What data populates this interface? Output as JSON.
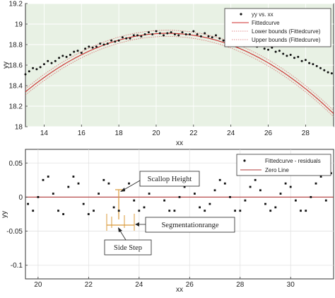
{
  "chart_data": [
    {
      "type": "scatter",
      "xlabel": "xx",
      "ylabel": "yy",
      "xlim": [
        13,
        29.5
      ],
      "ylim": [
        18,
        19.2
      ],
      "xticks": [
        14,
        16,
        18,
        20,
        22,
        24,
        26,
        28
      ],
      "yticks": [
        18,
        18.2,
        18.4,
        18.6,
        18.8,
        19,
        19.2
      ],
      "grid": true,
      "legend_position": "top-right",
      "colors": {
        "plot_bg": "#e8f1e4",
        "points": "#111111",
        "fit": "#cc2a2a",
        "bounds": "#d86a6a"
      },
      "legend": [
        "yy vs. xx",
        "Fittedcurve",
        "Lower bounds (Fittedcurve)",
        "Upper bounds (Fittedcurve)"
      ],
      "fit": {
        "form": "quadratic",
        "a": -0.00988,
        "x0": 20.6,
        "c": 18.91
      },
      "bound_offset": 0.03,
      "series": [
        {
          "name": "yy vs. xx",
          "x": [
            13.0,
            13.2,
            13.4,
            13.6,
            13.8,
            14.0,
            14.2,
            14.4,
            14.6,
            14.8,
            15.0,
            15.2,
            15.4,
            15.6,
            15.8,
            16.0,
            16.2,
            16.4,
            16.6,
            16.8,
            17.0,
            17.2,
            17.4,
            17.6,
            17.8,
            18.0,
            18.2,
            18.4,
            18.6,
            18.8,
            19.0,
            19.2,
            19.4,
            19.6,
            19.8,
            20.0,
            20.2,
            20.4,
            20.6,
            20.8,
            21.0,
            21.2,
            21.4,
            21.6,
            21.8,
            22.0,
            22.2,
            22.4,
            22.6,
            22.8,
            23.0,
            23.2,
            23.4,
            23.6,
            23.8,
            24.0,
            24.2,
            24.4,
            24.6,
            24.8,
            25.0,
            25.2,
            25.4,
            25.6,
            25.8,
            26.0,
            26.2,
            26.4,
            26.6,
            26.8,
            27.0,
            27.2,
            27.4,
            27.6,
            27.8,
            28.0,
            28.2,
            28.4,
            28.6,
            28.8,
            29.0,
            29.2,
            29.4
          ],
          "y": [
            18.51,
            18.54,
            18.57,
            18.56,
            18.58,
            18.61,
            18.64,
            18.62,
            18.64,
            18.67,
            18.69,
            18.68,
            18.7,
            18.73,
            18.74,
            18.72,
            18.76,
            18.78,
            18.77,
            18.78,
            18.81,
            18.8,
            18.81,
            18.84,
            18.83,
            18.84,
            18.87,
            18.86,
            18.86,
            18.89,
            18.89,
            18.88,
            18.9,
            18.92,
            18.9,
            18.93,
            18.91,
            18.89,
            18.91,
            18.92,
            18.9,
            18.89,
            18.92,
            18.9,
            18.9,
            18.93,
            18.9,
            18.88,
            18.91,
            18.88,
            18.87,
            18.89,
            18.86,
            18.84,
            18.87,
            18.85,
            18.83,
            18.85,
            18.82,
            18.81,
            18.83,
            18.8,
            18.78,
            18.8,
            18.76,
            18.75,
            18.77,
            18.73,
            18.74,
            18.71,
            18.69,
            18.7,
            18.67,
            18.68,
            18.64,
            18.65,
            18.62,
            18.61,
            18.59,
            18.57,
            18.55,
            18.53,
            18.52
          ]
        }
      ]
    },
    {
      "type": "scatter",
      "xlabel": "xx",
      "ylabel": "yy",
      "xlim": [
        19.5,
        31.7
      ],
      "ylim": [
        -0.12,
        0.07
      ],
      "xticks": [
        20,
        22,
        24,
        26,
        28,
        30
      ],
      "yticks": [
        -0.1,
        -0.05,
        0,
        0.05
      ],
      "grid": true,
      "legend_position": "top-right",
      "colors": {
        "points": "#111111",
        "zero": "#b03a3a",
        "annotation": "#d99a3a"
      },
      "legend": [
        "Fittedcurve - residuals",
        "Zero Line"
      ],
      "series": [
        {
          "name": "Fittedcurve - residuals",
          "x": [
            19.6,
            19.8,
            20.0,
            20.2,
            20.4,
            20.6,
            20.8,
            21.0,
            21.2,
            21.4,
            21.6,
            21.8,
            22.0,
            22.2,
            22.4,
            22.6,
            22.8,
            23.0,
            23.2,
            23.4,
            23.6,
            23.8,
            24.0,
            24.2,
            24.4,
            24.6,
            24.8,
            25.0,
            25.2,
            25.4,
            25.6,
            25.8,
            26.0,
            26.2,
            26.4,
            26.6,
            26.8,
            27.0,
            27.2,
            27.4,
            27.6,
            27.8,
            28.0,
            28.2,
            28.4,
            28.6,
            28.8,
            29.0,
            29.2,
            29.4,
            29.6,
            29.8,
            30.0,
            30.2,
            30.4,
            30.6,
            30.8,
            31.0,
            31.2,
            31.4,
            31.6
          ],
          "y": [
            -0.01,
            -0.02,
            0.0,
            0.025,
            0.03,
            0.005,
            -0.02,
            -0.025,
            0.015,
            0.03,
            0.02,
            -0.01,
            -0.025,
            -0.02,
            0.005,
            0.025,
            0.02,
            -0.015,
            -0.02,
            0.01,
            0.02,
            -0.005,
            -0.02,
            -0.015,
            0.005,
            0.03,
            0.02,
            -0.005,
            -0.02,
            -0.02,
            0.0,
            0.015,
            0.02,
            0.005,
            -0.015,
            -0.02,
            -0.01,
            0.01,
            0.025,
            0.02,
            0.0,
            -0.02,
            -0.02,
            -0.005,
            0.015,
            0.025,
            0.01,
            -0.01,
            -0.02,
            -0.015,
            0.005,
            0.02,
            0.015,
            -0.005,
            -0.02,
            -0.02,
            0.0,
            0.02,
            0.03,
            -0.005,
            0.035
          ]
        }
      ],
      "annotations": [
        "Scallop Height",
        "Segmentationrange",
        "Side Step"
      ]
    }
  ]
}
